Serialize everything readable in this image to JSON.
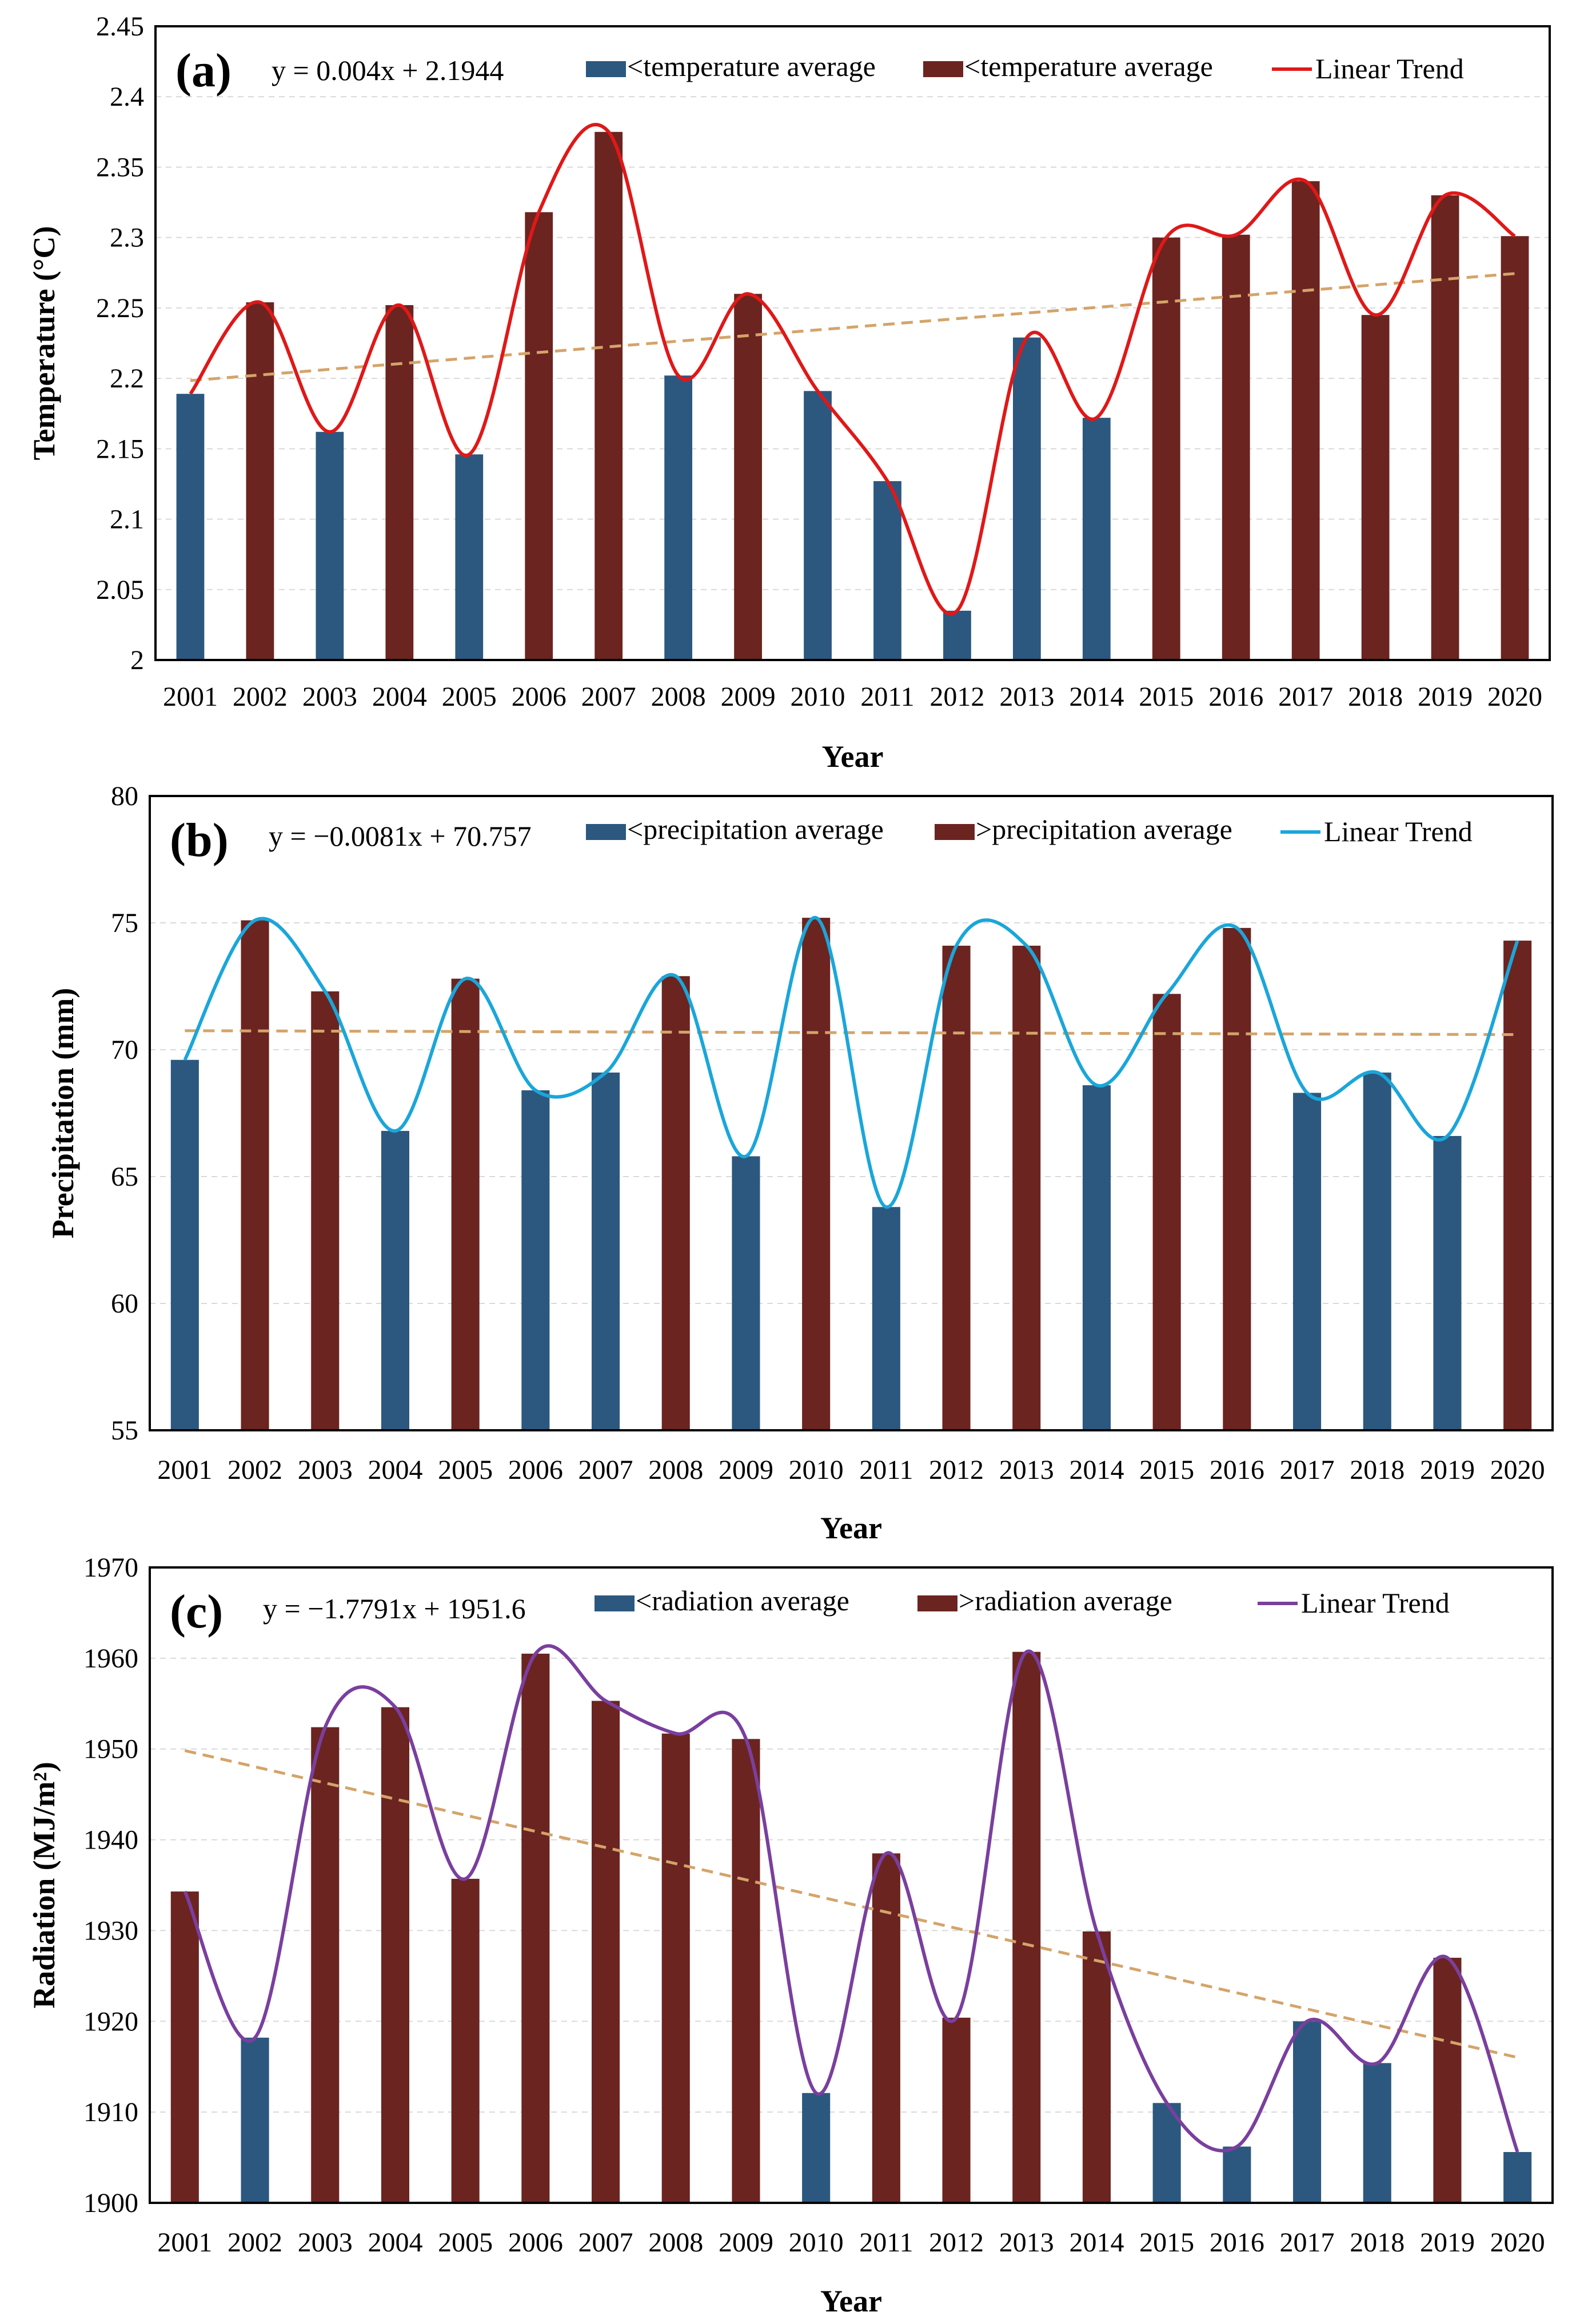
{
  "chart_data": [
    {
      "type": "bar",
      "panel_label": "(a)",
      "equation": "y = 0.004x + 2.1944",
      "xlabel": "Year",
      "ylabel": "Temperature (°C)",
      "ylim": [
        2,
        2.45
      ],
      "yticks": [
        "2",
        "2.05",
        "2.1",
        "2.15",
        "2.2",
        "2.25",
        "2.3",
        "2.35",
        "2.4",
        "2.45"
      ],
      "categories": [
        "2001",
        "2002",
        "2003",
        "2004",
        "2005",
        "2006",
        "2007",
        "2008",
        "2009",
        "2010",
        "2011",
        "2012",
        "2013",
        "2014",
        "2015",
        "2016",
        "2017",
        "2018",
        "2019",
        "2020"
      ],
      "values": [
        2.189,
        2.254,
        2.162,
        2.252,
        2.146,
        2.318,
        2.375,
        2.202,
        2.26,
        2.191,
        2.127,
        2.035,
        2.229,
        2.172,
        2.3,
        2.302,
        2.34,
        2.245,
        2.33,
        2.301
      ],
      "above_average": [
        false,
        true,
        false,
        true,
        false,
        true,
        true,
        false,
        true,
        false,
        false,
        false,
        false,
        false,
        true,
        true,
        true,
        true,
        true,
        true
      ],
      "legend": [
        "<temperature average",
        "<temperature average",
        "Linear Trend"
      ],
      "trend_line": {
        "slope": 0.004,
        "intercept": 2.1944
      },
      "line_color": "#e01818"
    },
    {
      "type": "bar",
      "panel_label": "(b)",
      "equation": "y = −0.0081x + 70.757",
      "xlabel": "Year",
      "ylabel": "Precipitation (mm)",
      "ylim": [
        55,
        80
      ],
      "yticks": [
        "55",
        "60",
        "65",
        "70",
        "75",
        "80"
      ],
      "categories": [
        "2001",
        "2002",
        "2003",
        "2004",
        "2005",
        "2006",
        "2007",
        "2008",
        "2009",
        "2010",
        "2011",
        "2012",
        "2013",
        "2014",
        "2015",
        "2016",
        "2017",
        "2018",
        "2019",
        "2020"
      ],
      "values": [
        69.6,
        75.1,
        72.3,
        66.8,
        72.8,
        68.4,
        69.1,
        72.9,
        65.8,
        75.2,
        63.8,
        74.1,
        74.1,
        68.6,
        72.2,
        74.8,
        68.3,
        69.1,
        66.6,
        74.3
      ],
      "above_average": [
        false,
        true,
        true,
        false,
        true,
        false,
        false,
        true,
        false,
        true,
        false,
        true,
        true,
        false,
        true,
        true,
        false,
        false,
        false,
        true
      ],
      "legend": [
        "<precipitation average",
        ">precipitation average",
        "Linear Trend"
      ],
      "trend_line": {
        "slope": -0.0081,
        "intercept": 70.757
      },
      "line_color": "#1aa6da"
    },
    {
      "type": "bar",
      "panel_label": "(c)",
      "equation": "y = −1.7791x + 1951.6",
      "xlabel": "Year",
      "ylabel": "Radiation (MJ/m²)",
      "ylim": [
        1900,
        1970
      ],
      "yticks": [
        "1900",
        "1910",
        "1920",
        "1930",
        "1940",
        "1950",
        "1960",
        "1970"
      ],
      "categories": [
        "2001",
        "2002",
        "2003",
        "2004",
        "2005",
        "2006",
        "2007",
        "2008",
        "2009",
        "2010",
        "2011",
        "2012",
        "2013",
        "2014",
        "2015",
        "2016",
        "2017",
        "2018",
        "2019",
        "2020"
      ],
      "values": [
        1934.3,
        1918.2,
        1952.4,
        1954.6,
        1935.7,
        1960.5,
        1955.3,
        1951.7,
        1951.1,
        1912.1,
        1938.5,
        1920.4,
        1960.7,
        1929.9,
        1911.0,
        1906.2,
        1920.0,
        1915.4,
        1927.0,
        1905.6
      ],
      "above_average": [
        true,
        false,
        true,
        true,
        true,
        true,
        true,
        true,
        true,
        false,
        true,
        true,
        true,
        true,
        false,
        false,
        false,
        false,
        true,
        false
      ],
      "legend": [
        "<radiation average",
        ">radiation average",
        "Linear Trend"
      ],
      "trend_line": {
        "slope": -1.7791,
        "intercept": 1951.6
      },
      "line_color": "#7a3f9e"
    }
  ],
  "colors": {
    "below": "#2c587f",
    "above": "#6b2420",
    "trend": "#d4a46a"
  }
}
